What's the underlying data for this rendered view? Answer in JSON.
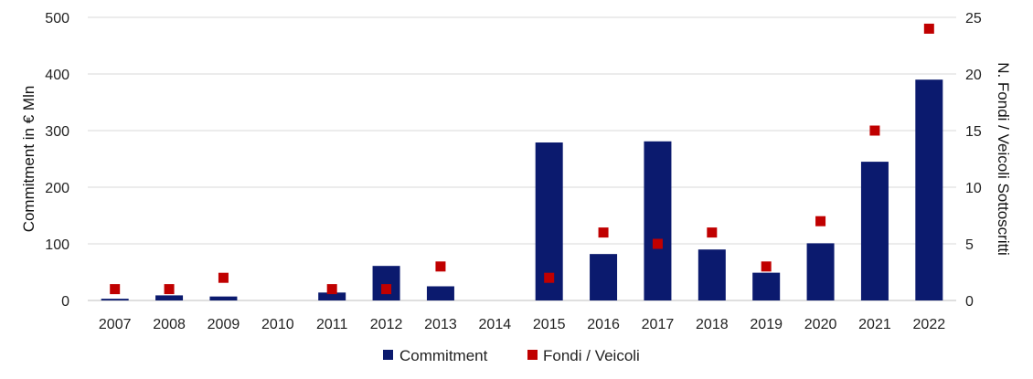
{
  "chart_data": {
    "type": "bar",
    "categories": [
      "2007",
      "2008",
      "2009",
      "2010",
      "2011",
      "2012",
      "2013",
      "2014",
      "2015",
      "2016",
      "2017",
      "2018",
      "2019",
      "2020",
      "2021",
      "2022"
    ],
    "series": [
      {
        "name": "Commitment",
        "type": "bar",
        "axis": "left",
        "color": "#0b1a6e",
        "values": [
          3,
          9,
          7,
          0,
          14,
          61,
          25,
          0,
          279,
          82,
          281,
          90,
          49,
          101,
          245,
          390
        ]
      },
      {
        "name": "Fondi / Veicoli",
        "type": "scatter",
        "axis": "right",
        "color": "#c00000",
        "values": [
          1,
          1,
          2,
          null,
          1,
          1,
          3,
          null,
          2,
          6,
          5,
          6,
          3,
          7,
          15,
          24
        ]
      }
    ],
    "ylabel": "Commitment in € Mln",
    "y2label": "N. Fondi / Veicoli Sottoscritti",
    "ylim": [
      0,
      500
    ],
    "y2lim": [
      0,
      25
    ],
    "yticks": [
      0,
      100,
      200,
      300,
      400,
      500
    ],
    "y2ticks": [
      0,
      5,
      10,
      15,
      20,
      25
    ],
    "grid": true,
    "legend_position": "bottom",
    "legend": [
      "Commitment",
      "Fondi / Veicoli"
    ]
  }
}
